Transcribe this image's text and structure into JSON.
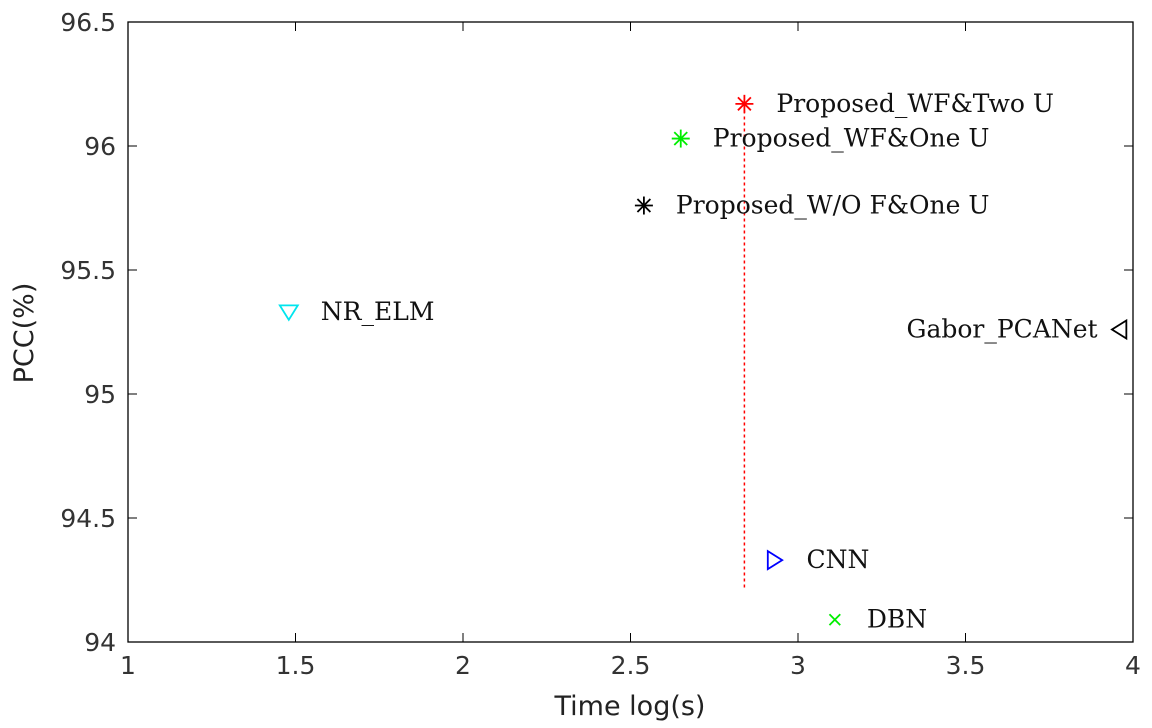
{
  "chart_data": {
    "type": "scatter",
    "title": "",
    "xlabel": "Time log(s)",
    "ylabel": "PCC(%)",
    "xlim": [
      1,
      4
    ],
    "ylim": [
      94,
      96.5
    ],
    "x_ticks": [
      1,
      1.5,
      2,
      2.5,
      3,
      3.5,
      4
    ],
    "x_tick_labels": [
      "1",
      "1.5",
      "2",
      "2.5",
      "3",
      "3.5",
      "4"
    ],
    "y_ticks": [
      94,
      94.5,
      95,
      95.5,
      96,
      96.5
    ],
    "y_tick_labels": [
      "94",
      "94.5",
      "95",
      "95.5",
      "96",
      "96.5"
    ],
    "grid": false,
    "points": [
      {
        "name": "Proposed_WF&Two U",
        "x": 2.84,
        "y": 96.17,
        "marker": "asterisk",
        "color": "#ff0000",
        "label_side": "right"
      },
      {
        "name": "Proposed_WF&One U",
        "x": 2.65,
        "y": 96.03,
        "marker": "asterisk",
        "color": "#00ee00",
        "label_side": "right"
      },
      {
        "name": "Proposed_W/O F&One U",
        "x": 2.54,
        "y": 95.76,
        "marker": "asterisk",
        "color": "#000000",
        "label_side": "right"
      },
      {
        "name": "NR_ELM",
        "x": 1.48,
        "y": 95.33,
        "marker": "triangle-down",
        "color": "#00e5ee",
        "label_side": "right"
      },
      {
        "name": "Gabor_PCANet",
        "x": 3.96,
        "y": 95.26,
        "marker": "triangle-left",
        "color": "#000000",
        "label_side": "left"
      },
      {
        "name": "CNN",
        "x": 2.93,
        "y": 94.33,
        "marker": "triangle-right",
        "color": "#0000ff",
        "label_side": "right"
      },
      {
        "name": "DBN",
        "x": 3.11,
        "y": 94.09,
        "marker": "x",
        "color": "#00ee00",
        "label_side": "right"
      }
    ],
    "reference_line": {
      "x": 2.84,
      "y_range": [
        94.22,
        96.17
      ],
      "style": "dotted",
      "color": "#ff0000"
    }
  }
}
